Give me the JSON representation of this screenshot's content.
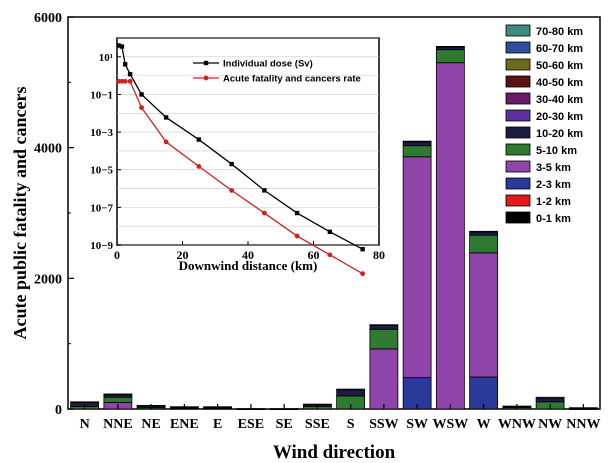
{
  "chart_data": [
    {
      "type": "bar",
      "stacked": true,
      "xlabel": "Wind direction",
      "ylabel": "Acute public fatality and cancers",
      "ylim": [
        0,
        6000
      ],
      "yticks": [
        "0",
        "2000",
        "4000",
        "6000"
      ],
      "categories": [
        "N",
        "NNE",
        "NE",
        "ENE",
        "E",
        "ESE",
        "SE",
        "SSE",
        "S",
        "SSW",
        "SW",
        "WSW",
        "W",
        "WNW",
        "NW",
        "NNW"
      ],
      "series": [
        {
          "name": "0-1 km",
          "color": "#000000",
          "values": [
            0,
            0,
            0,
            0,
            0,
            0,
            0,
            0,
            0,
            0,
            0,
            0,
            0,
            0,
            0,
            0
          ]
        },
        {
          "name": "1-2 km",
          "color": "#e31a1c",
          "values": [
            0,
            0,
            0,
            0,
            0,
            0,
            0,
            0,
            0,
            0,
            0,
            0,
            0,
            0,
            0,
            0
          ]
        },
        {
          "name": "2-3 km",
          "color": "#2b3a9a",
          "values": [
            0,
            0,
            0,
            0,
            0,
            0,
            0,
            0,
            0,
            0,
            480,
            0,
            490,
            0,
            0,
            0
          ]
        },
        {
          "name": "3-5 km",
          "color": "#8e44a8",
          "values": [
            0,
            100,
            0,
            0,
            0,
            0,
            0,
            0,
            0,
            920,
            3380,
            5300,
            1900,
            0,
            0,
            0
          ]
        },
        {
          "name": "5-10 km",
          "color": "#2f7a30",
          "values": [
            40,
            80,
            20,
            10,
            10,
            0,
            0,
            40,
            200,
            300,
            170,
            200,
            270,
            20,
            110,
            5
          ]
        },
        {
          "name": "10-20 km",
          "color": "#1c1c45",
          "values": [
            60,
            40,
            30,
            20,
            20,
            3,
            3,
            30,
            90,
            60,
            60,
            40,
            50,
            20,
            50,
            10
          ]
        },
        {
          "name": "20-30 km",
          "color": "#5b2fa0",
          "values": [
            10,
            10,
            5,
            5,
            5,
            2,
            2,
            5,
            15,
            10,
            10,
            10,
            10,
            5,
            20,
            5
          ]
        },
        {
          "name": "30-40 km",
          "color": "#6a1a6a",
          "values": [
            0,
            0,
            0,
            0,
            0,
            0,
            0,
            0,
            0,
            0,
            0,
            0,
            0,
            0,
            0,
            0
          ]
        },
        {
          "name": "40-50 km",
          "color": "#5a1414",
          "values": [
            0,
            0,
            0,
            0,
            0,
            0,
            0,
            0,
            0,
            0,
            0,
            0,
            0,
            0,
            0,
            0
          ]
        },
        {
          "name": "50-60 km",
          "color": "#6b6b1c",
          "values": [
            0,
            0,
            0,
            0,
            0,
            0,
            0,
            0,
            0,
            0,
            0,
            0,
            0,
            0,
            0,
            0
          ]
        },
        {
          "name": "60-70 km",
          "color": "#2f4f9a",
          "values": [
            0,
            0,
            0,
            0,
            0,
            0,
            0,
            0,
            0,
            0,
            0,
            0,
            0,
            0,
            0,
            0
          ]
        },
        {
          "name": "70-80 km",
          "color": "#3f8a82",
          "values": [
            0,
            0,
            0,
            0,
            0,
            0,
            0,
            0,
            0,
            0,
            0,
            0,
            0,
            0,
            0,
            0
          ]
        }
      ]
    },
    {
      "type": "line",
      "xlabel": "Downwind distance (km)",
      "ylabel": "",
      "xlim": [
        0,
        80
      ],
      "ylim_log10": [
        -9,
        2
      ],
      "xticks": [
        "0",
        "20",
        "40",
        "60",
        "80"
      ],
      "yticks": [
        "10−9",
        "10−7",
        "10−5",
        "10−3",
        "10−1",
        "10¹"
      ],
      "series": [
        {
          "name": "Individual dose (Sv)",
          "color": "#000000",
          "x": [
            0.5,
            1.5,
            2.5,
            4,
            7.5,
            15,
            25,
            35,
            45,
            55,
            65,
            75
          ],
          "y": [
            40,
            35,
            4,
            1.2,
            0.1,
            0.006,
            0.0004,
            2e-05,
            8e-07,
            5e-08,
            5e-09,
            6e-10
          ]
        },
        {
          "name": "Acute fatality and cancers rate",
          "color": "#d02020",
          "x": [
            0.5,
            1.5,
            2.5,
            4,
            7.5,
            15,
            25,
            35,
            45,
            55,
            65,
            75
          ],
          "y": [
            0.5,
            0.5,
            0.5,
            0.5,
            0.02,
            0.0003,
            1.5e-05,
            8e-07,
            5e-08,
            3e-09,
            3e-10,
            3e-11
          ]
        }
      ]
    }
  ]
}
